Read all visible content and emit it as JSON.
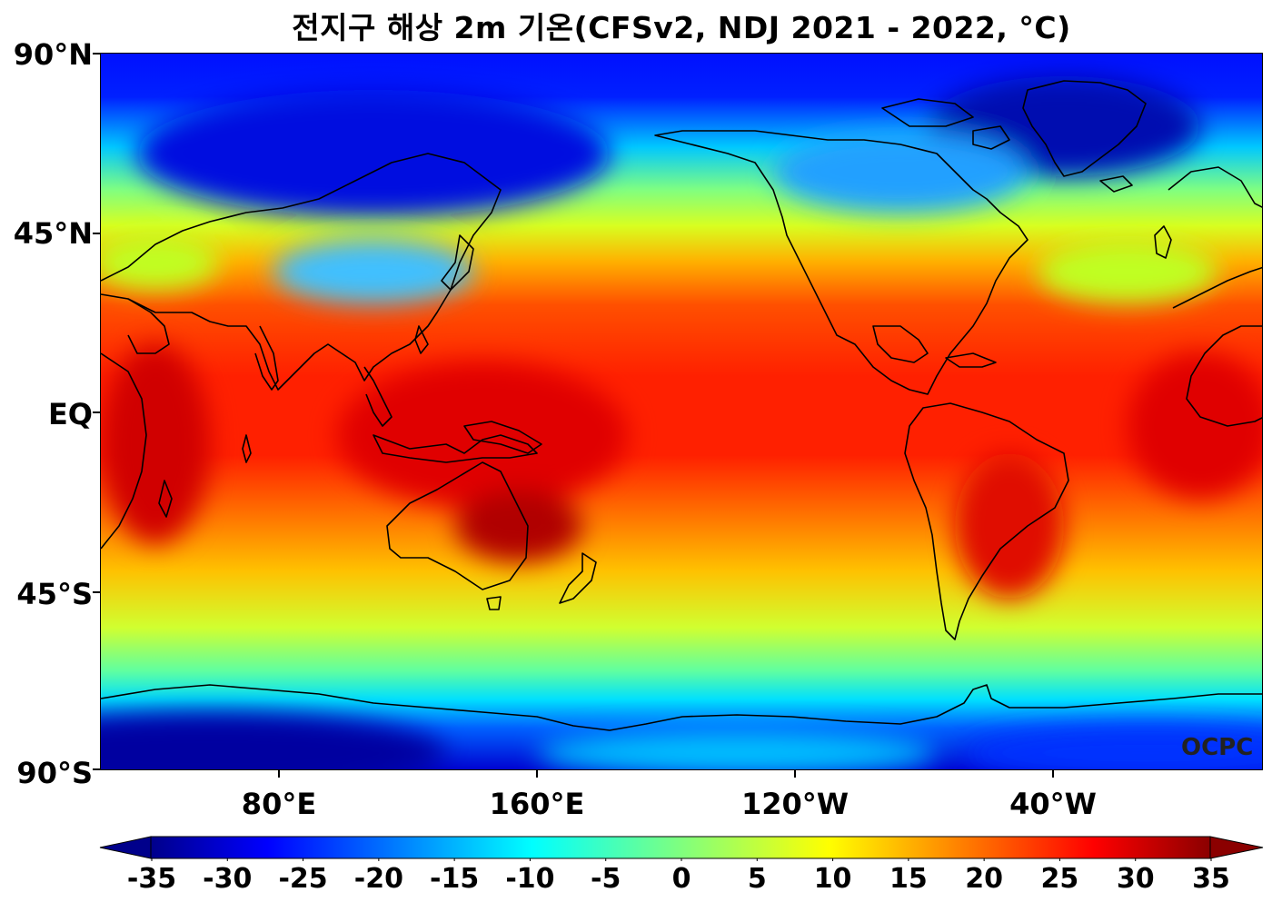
{
  "title": "전지구 해상 2m 기온(CFSv2, NDJ 2021 - 2022, °C)",
  "map": {
    "lat_labels": [
      "90°N",
      "45°N",
      "EQ",
      "45°S",
      "90°S"
    ],
    "lon_labels": [
      "80°E",
      "160°E",
      "120°W",
      "40°W"
    ],
    "credit": "OCPC",
    "colors": {
      "frame": "#000000",
      "coastline": "#000000",
      "deep_cold": "#00008b",
      "cold": "#0000ff",
      "cool": "#00ffff",
      "mild": "#7fff7f",
      "warm": "#ffff00",
      "hot": "#ff8000",
      "very_hot": "#ff0000",
      "extreme": "#8b0000"
    }
  },
  "colorbar": {
    "ticks": [
      "-35",
      "-30",
      "-25",
      "-20",
      "-15",
      "-10",
      "-5",
      "0",
      "5",
      "10",
      "15",
      "20",
      "25",
      "30",
      "35"
    ],
    "range": [
      -37.5,
      37.5
    ],
    "colormap": "jet",
    "extend": "both"
  }
}
